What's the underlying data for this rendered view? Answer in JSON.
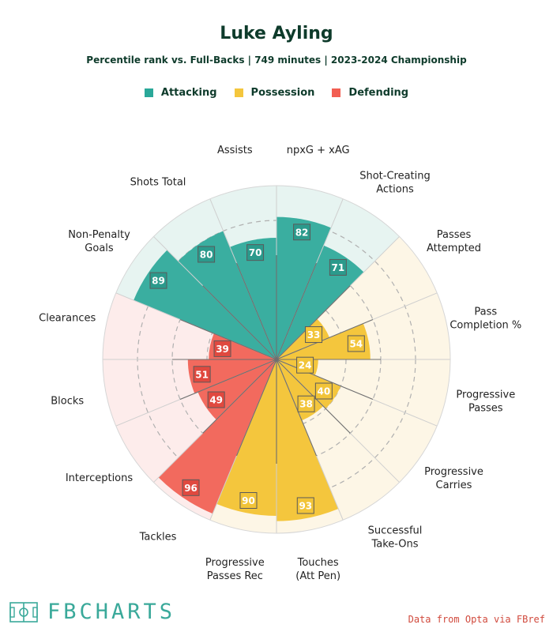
{
  "chart_data": {
    "type": "radar",
    "title": "Luke Ayling",
    "subtitle": "Percentile rank vs. Full-Backs | 749 minutes | 2023-2024 Championship",
    "ylim": [
      0,
      100
    ],
    "rings": [
      20,
      40,
      60,
      80,
      100
    ],
    "legend": [
      {
        "name": "Attacking",
        "color": "#2aa899"
      },
      {
        "name": "Possession",
        "color": "#f4c63d"
      },
      {
        "name": "Defending",
        "color": "#f25e52"
      }
    ],
    "colors": {
      "Attacking": {
        "fill": "#3aaea0",
        "bg": "#e7f4f1",
        "badge": "#2b9a8c"
      },
      "Possession": {
        "fill": "#f4c63d",
        "bg": "#fdf6e6",
        "badge": "#f2c438"
      },
      "Defending": {
        "fill": "#f26a5e",
        "bg": "#fdeceb",
        "badge": "#e0493f"
      }
    },
    "categories": [
      {
        "label": "npxG + xAG",
        "value": 82,
        "group": "Attacking"
      },
      {
        "label": "Shot-Creating Actions",
        "value": 71,
        "group": "Attacking"
      },
      {
        "label": "Passes Attempted",
        "value": 33,
        "group": "Possession"
      },
      {
        "label": "Pass Completion %",
        "value": 54,
        "group": "Possession"
      },
      {
        "label": "Progressive Passes",
        "value": 24,
        "group": "Possession"
      },
      {
        "label": "Progressive Carries",
        "value": 40,
        "group": "Possession"
      },
      {
        "label": "Successful Take-Ons",
        "value": 38,
        "group": "Possession"
      },
      {
        "label": "Touches (Att Pen)",
        "value": 93,
        "group": "Possession"
      },
      {
        "label": "Progressive Passes Rec",
        "value": 90,
        "group": "Possession"
      },
      {
        "label": "Tackles",
        "value": 96,
        "group": "Defending"
      },
      {
        "label": "Interceptions",
        "value": 49,
        "group": "Defending"
      },
      {
        "label": "Blocks",
        "value": 51,
        "group": "Defending"
      },
      {
        "label": "Clearances",
        "value": 39,
        "group": "Defending"
      },
      {
        "label": "Non-Penalty Goals",
        "value": 89,
        "group": "Attacking"
      },
      {
        "label": "Shots Total",
        "value": 80,
        "group": "Attacking"
      },
      {
        "label": "Assists",
        "value": 70,
        "group": "Attacking"
      }
    ]
  },
  "footer": {
    "logo_text": "FBCHARTS",
    "source": "Data from Opta via FBref"
  }
}
